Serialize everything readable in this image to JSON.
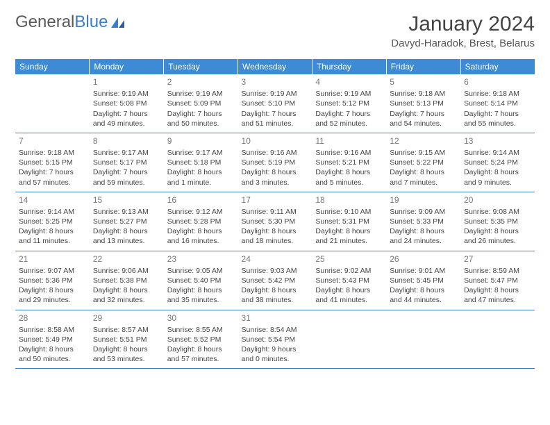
{
  "logo": {
    "text1": "General",
    "text2": "Blue"
  },
  "title": "January 2024",
  "location": "Davyd-Haradok, Brest, Belarus",
  "colors": {
    "header_bg": "#3d8bd4",
    "header_text": "#ffffff",
    "border": "#3d7cc9",
    "daynum": "#777777",
    "body_text": "#444444",
    "logo_gray": "#5a5a5a",
    "logo_blue": "#3d7cc9"
  },
  "day_headers": [
    "Sunday",
    "Monday",
    "Tuesday",
    "Wednesday",
    "Thursday",
    "Friday",
    "Saturday"
  ],
  "weeks": [
    [
      {
        "day": "",
        "lines": []
      },
      {
        "day": "1",
        "lines": [
          "Sunrise: 9:19 AM",
          "Sunset: 5:08 PM",
          "Daylight: 7 hours",
          "and 49 minutes."
        ]
      },
      {
        "day": "2",
        "lines": [
          "Sunrise: 9:19 AM",
          "Sunset: 5:09 PM",
          "Daylight: 7 hours",
          "and 50 minutes."
        ]
      },
      {
        "day": "3",
        "lines": [
          "Sunrise: 9:19 AM",
          "Sunset: 5:10 PM",
          "Daylight: 7 hours",
          "and 51 minutes."
        ]
      },
      {
        "day": "4",
        "lines": [
          "Sunrise: 9:19 AM",
          "Sunset: 5:12 PM",
          "Daylight: 7 hours",
          "and 52 minutes."
        ]
      },
      {
        "day": "5",
        "lines": [
          "Sunrise: 9:18 AM",
          "Sunset: 5:13 PM",
          "Daylight: 7 hours",
          "and 54 minutes."
        ]
      },
      {
        "day": "6",
        "lines": [
          "Sunrise: 9:18 AM",
          "Sunset: 5:14 PM",
          "Daylight: 7 hours",
          "and 55 minutes."
        ]
      }
    ],
    [
      {
        "day": "7",
        "lines": [
          "Sunrise: 9:18 AM",
          "Sunset: 5:15 PM",
          "Daylight: 7 hours",
          "and 57 minutes."
        ]
      },
      {
        "day": "8",
        "lines": [
          "Sunrise: 9:17 AM",
          "Sunset: 5:17 PM",
          "Daylight: 7 hours",
          "and 59 minutes."
        ]
      },
      {
        "day": "9",
        "lines": [
          "Sunrise: 9:17 AM",
          "Sunset: 5:18 PM",
          "Daylight: 8 hours",
          "and 1 minute."
        ]
      },
      {
        "day": "10",
        "lines": [
          "Sunrise: 9:16 AM",
          "Sunset: 5:19 PM",
          "Daylight: 8 hours",
          "and 3 minutes."
        ]
      },
      {
        "day": "11",
        "lines": [
          "Sunrise: 9:16 AM",
          "Sunset: 5:21 PM",
          "Daylight: 8 hours",
          "and 5 minutes."
        ]
      },
      {
        "day": "12",
        "lines": [
          "Sunrise: 9:15 AM",
          "Sunset: 5:22 PM",
          "Daylight: 8 hours",
          "and 7 minutes."
        ]
      },
      {
        "day": "13",
        "lines": [
          "Sunrise: 9:14 AM",
          "Sunset: 5:24 PM",
          "Daylight: 8 hours",
          "and 9 minutes."
        ]
      }
    ],
    [
      {
        "day": "14",
        "lines": [
          "Sunrise: 9:14 AM",
          "Sunset: 5:25 PM",
          "Daylight: 8 hours",
          "and 11 minutes."
        ]
      },
      {
        "day": "15",
        "lines": [
          "Sunrise: 9:13 AM",
          "Sunset: 5:27 PM",
          "Daylight: 8 hours",
          "and 13 minutes."
        ]
      },
      {
        "day": "16",
        "lines": [
          "Sunrise: 9:12 AM",
          "Sunset: 5:28 PM",
          "Daylight: 8 hours",
          "and 16 minutes."
        ]
      },
      {
        "day": "17",
        "lines": [
          "Sunrise: 9:11 AM",
          "Sunset: 5:30 PM",
          "Daylight: 8 hours",
          "and 18 minutes."
        ]
      },
      {
        "day": "18",
        "lines": [
          "Sunrise: 9:10 AM",
          "Sunset: 5:31 PM",
          "Daylight: 8 hours",
          "and 21 minutes."
        ]
      },
      {
        "day": "19",
        "lines": [
          "Sunrise: 9:09 AM",
          "Sunset: 5:33 PM",
          "Daylight: 8 hours",
          "and 24 minutes."
        ]
      },
      {
        "day": "20",
        "lines": [
          "Sunrise: 9:08 AM",
          "Sunset: 5:35 PM",
          "Daylight: 8 hours",
          "and 26 minutes."
        ]
      }
    ],
    [
      {
        "day": "21",
        "lines": [
          "Sunrise: 9:07 AM",
          "Sunset: 5:36 PM",
          "Daylight: 8 hours",
          "and 29 minutes."
        ]
      },
      {
        "day": "22",
        "lines": [
          "Sunrise: 9:06 AM",
          "Sunset: 5:38 PM",
          "Daylight: 8 hours",
          "and 32 minutes."
        ]
      },
      {
        "day": "23",
        "lines": [
          "Sunrise: 9:05 AM",
          "Sunset: 5:40 PM",
          "Daylight: 8 hours",
          "and 35 minutes."
        ]
      },
      {
        "day": "24",
        "lines": [
          "Sunrise: 9:03 AM",
          "Sunset: 5:42 PM",
          "Daylight: 8 hours",
          "and 38 minutes."
        ]
      },
      {
        "day": "25",
        "lines": [
          "Sunrise: 9:02 AM",
          "Sunset: 5:43 PM",
          "Daylight: 8 hours",
          "and 41 minutes."
        ]
      },
      {
        "day": "26",
        "lines": [
          "Sunrise: 9:01 AM",
          "Sunset: 5:45 PM",
          "Daylight: 8 hours",
          "and 44 minutes."
        ]
      },
      {
        "day": "27",
        "lines": [
          "Sunrise: 8:59 AM",
          "Sunset: 5:47 PM",
          "Daylight: 8 hours",
          "and 47 minutes."
        ]
      }
    ],
    [
      {
        "day": "28",
        "lines": [
          "Sunrise: 8:58 AM",
          "Sunset: 5:49 PM",
          "Daylight: 8 hours",
          "and 50 minutes."
        ]
      },
      {
        "day": "29",
        "lines": [
          "Sunrise: 8:57 AM",
          "Sunset: 5:51 PM",
          "Daylight: 8 hours",
          "and 53 minutes."
        ]
      },
      {
        "day": "30",
        "lines": [
          "Sunrise: 8:55 AM",
          "Sunset: 5:52 PM",
          "Daylight: 8 hours",
          "and 57 minutes."
        ]
      },
      {
        "day": "31",
        "lines": [
          "Sunrise: 8:54 AM",
          "Sunset: 5:54 PM",
          "Daylight: 9 hours",
          "and 0 minutes."
        ]
      },
      {
        "day": "",
        "lines": []
      },
      {
        "day": "",
        "lines": []
      },
      {
        "day": "",
        "lines": []
      }
    ]
  ]
}
